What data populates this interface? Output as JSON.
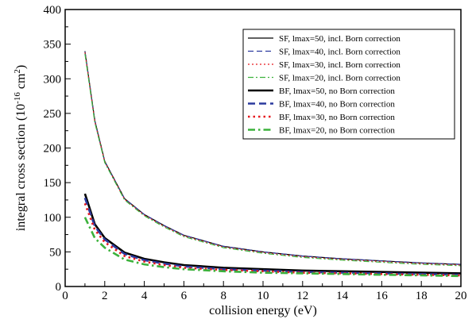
{
  "chart_data": {
    "type": "line",
    "xlabel": "collision energy (eV)",
    "ylabel": {
      "prefix": "integral cross section (10",
      "exp1": "-16",
      "middle": " cm",
      "exp2": "2",
      "suffix": ")"
    },
    "xlim": [
      0,
      20
    ],
    "ylim": [
      0,
      400
    ],
    "xticks": [
      "0",
      "2",
      "4",
      "6",
      "8",
      "10",
      "12",
      "14",
      "16",
      "18",
      "20"
    ],
    "yticks": [
      "0",
      "50",
      "100",
      "150",
      "200",
      "250",
      "300",
      "350",
      "400"
    ],
    "grid": false,
    "legend_position": "top-right",
    "series": [
      {
        "name": "SF, lmax=50, incl. Born correction",
        "color": "#000000",
        "dash": "solid",
        "bold": false,
        "x": [
          1,
          1.5,
          2,
          3,
          4,
          5,
          6,
          8,
          10,
          12,
          14,
          16,
          18,
          20
        ],
        "y": [
          340,
          240,
          181,
          127,
          104,
          88,
          74,
          58,
          50,
          44,
          40,
          37,
          34,
          32
        ]
      },
      {
        "name": "SF, lmax=40, incl. Born correction",
        "color": "#2b3a9e",
        "dash": "dashed",
        "bold": false,
        "x": [
          1,
          1.5,
          2,
          3,
          4,
          5,
          6,
          8,
          10,
          12,
          14,
          16,
          18,
          20
        ],
        "y": [
          339,
          239,
          180,
          127,
          104,
          88,
          74,
          58,
          50,
          44,
          40,
          37,
          34,
          32
        ]
      },
      {
        "name": "SF, lmax=30, incl. Born correction",
        "color": "#e6191f",
        "dash": "dotted",
        "bold": false,
        "x": [
          1,
          1.5,
          2,
          3,
          4,
          5,
          6,
          8,
          10,
          12,
          14,
          16,
          18,
          20
        ],
        "y": [
          338,
          238,
          180,
          126,
          103,
          87,
          73,
          57,
          49,
          43,
          39,
          36,
          33,
          31
        ]
      },
      {
        "name": "SF, lmax=20, incl. Born correction",
        "color": "#3cb23c",
        "dash": "dashdot",
        "bold": false,
        "x": [
          1,
          1.5,
          2,
          3,
          4,
          5,
          6,
          8,
          10,
          12,
          14,
          16,
          18,
          20
        ],
        "y": [
          336,
          237,
          179,
          125,
          102,
          86,
          72,
          56,
          48,
          42,
          38,
          35,
          32,
          30
        ]
      },
      {
        "name": "BF, lmax=50, no Born correction",
        "color": "#000000",
        "dash": "solid",
        "bold": true,
        "x": [
          1,
          1.5,
          2,
          3,
          4,
          5,
          6,
          8,
          10,
          12,
          14,
          16,
          18,
          20
        ],
        "y": [
          134,
          90,
          70,
          49,
          40,
          35,
          31,
          27,
          25,
          23,
          22,
          21,
          20,
          19
        ]
      },
      {
        "name": "BF, lmax=40, no Born correction",
        "color": "#2b3a9e",
        "dash": "dashed",
        "bold": true,
        "x": [
          1,
          1.5,
          2,
          3,
          4,
          5,
          6,
          8,
          10,
          12,
          14,
          16,
          18,
          20
        ],
        "y": [
          128,
          87,
          68,
          47,
          38,
          33,
          29,
          25,
          23,
          21,
          20,
          19,
          18,
          17
        ]
      },
      {
        "name": "BF, lmax=30, no Born correction",
        "color": "#e6191f",
        "dash": "dotted",
        "bold": true,
        "x": [
          1,
          1.5,
          2,
          3,
          4,
          5,
          6,
          8,
          10,
          12,
          14,
          16,
          18,
          20
        ],
        "y": [
          120,
          82,
          64,
          44,
          36,
          31,
          27,
          24,
          22,
          20,
          19,
          18,
          17,
          16
        ]
      },
      {
        "name": "BF, lmax=20, no Born correction",
        "color": "#3cb23c",
        "dash": "dashdot",
        "bold": true,
        "x": [
          1,
          1.5,
          2,
          3,
          4,
          5,
          6,
          8,
          10,
          12,
          14,
          16,
          18,
          20
        ],
        "y": [
          100,
          70,
          56,
          39,
          32,
          28,
          25,
          22,
          20,
          19,
          18,
          17,
          16,
          15
        ]
      }
    ]
  }
}
